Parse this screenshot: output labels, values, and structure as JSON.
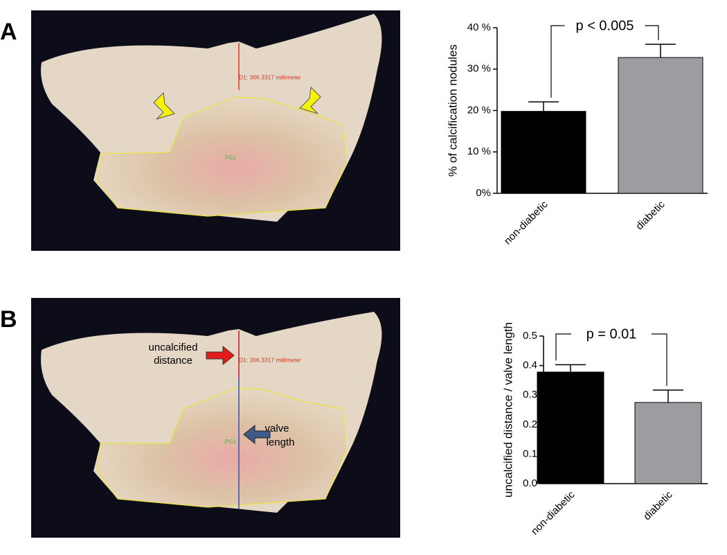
{
  "panels": [
    {
      "label": "A",
      "measure": "D1: 306.3317 millimeter",
      "region": "PG1"
    },
    {
      "label": "B",
      "measure": "D1: 306.3317 millimeter",
      "region": "PG1",
      "annotations": [
        [
          "uncalcified",
          "distance"
        ],
        [
          "valve",
          "length"
        ]
      ]
    }
  ],
  "chart_data": [
    {
      "type": "bar",
      "ylabel": "% of calcification nodules",
      "categories": [
        "non-diabetic",
        "diabetic"
      ],
      "values": [
        19.8,
        32.8
      ],
      "errors": [
        2.3,
        3.2
      ],
      "colors": [
        "#000000",
        "#9d9da1"
      ],
      "ylim": [
        0,
        40
      ],
      "yticks": [
        {
          "value": 0,
          "label": "0%"
        },
        {
          "value": 10,
          "label": "10 %"
        },
        {
          "value": 20,
          "label": "20 %"
        },
        {
          "value": 30,
          "label": "30 %"
        },
        {
          "value": 40,
          "label": "40 %"
        }
      ],
      "annotation": "p < 0.005"
    },
    {
      "type": "bar",
      "ylabel": "uncalcified distance / valve length",
      "categories": [
        "non-diabetic",
        "diabetic"
      ],
      "values": [
        0.378,
        0.275
      ],
      "errors": [
        0.025,
        0.042
      ],
      "colors": [
        "#000000",
        "#9d9da1"
      ],
      "ylim": [
        0,
        0.5
      ],
      "yticks": [
        {
          "value": 0,
          "label": "0.0"
        },
        0.1,
        0.2,
        0.3,
        0.4,
        0.5
      ],
      "annotation": "p = 0.01"
    }
  ]
}
